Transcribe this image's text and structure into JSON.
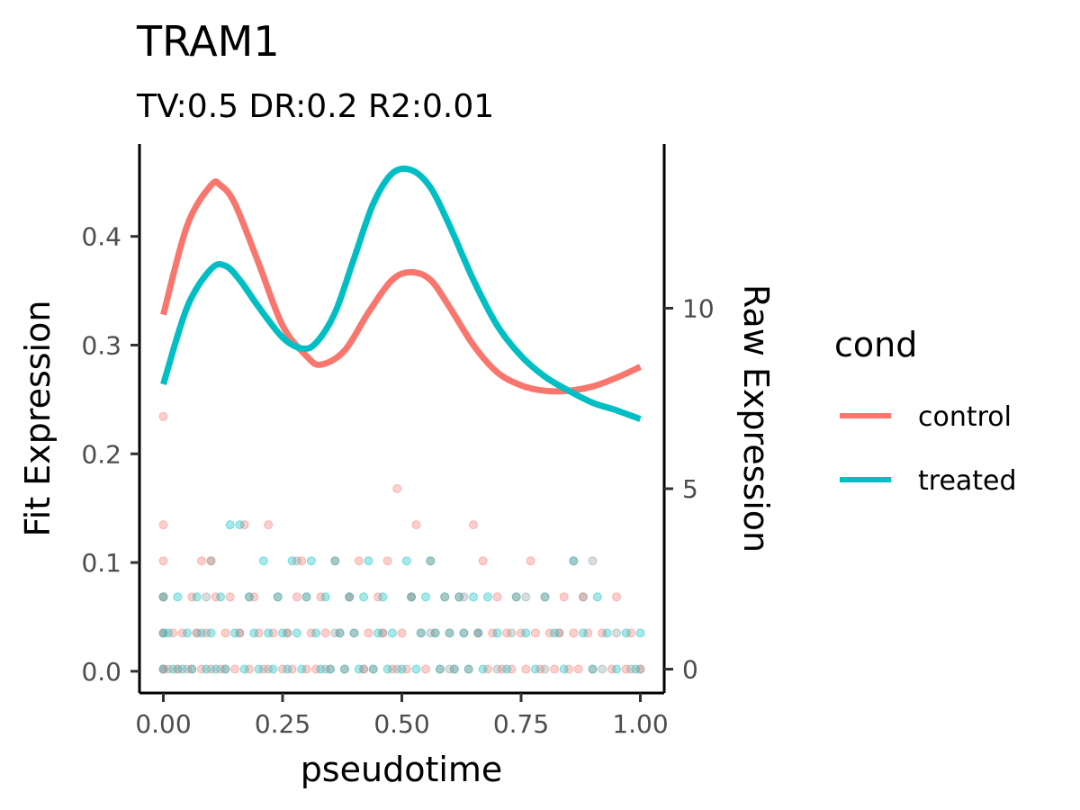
{
  "chart_data": {
    "type": "scatter",
    "title": "TRAM1",
    "subtitle": "TV:0.5 DR:0.2 R2:0.01",
    "xlabel": "pseudotime",
    "ylabel_left": "Fit Expression",
    "ylabel_right": "Raw Expression",
    "xlim": [
      -0.05,
      1.05
    ],
    "ylim_left": [
      -0.02,
      0.485
    ],
    "ylim_right": [
      -0.66,
      14.55
    ],
    "x_ticks": [
      0.0,
      0.25,
      0.5,
      0.75,
      1.0
    ],
    "x_tick_labels": [
      "0.00",
      "0.25",
      "0.50",
      "0.75",
      "1.00"
    ],
    "y_left_ticks": [
      0.0,
      0.1,
      0.2,
      0.3,
      0.4
    ],
    "y_left_tick_labels": [
      "0.0",
      "0.1",
      "0.2",
      "0.3",
      "0.4"
    ],
    "y_right_ticks": [
      0,
      5,
      10
    ],
    "y_right_tick_labels": [
      "0",
      "5",
      "10"
    ],
    "legend": {
      "title": "cond",
      "position": "right"
    },
    "grid": false,
    "series": [
      {
        "name": "control",
        "color": "#F8766D",
        "fit_x": [
          0,
          0.05,
          0.1,
          0.12,
          0.15,
          0.2,
          0.25,
          0.3,
          0.33,
          0.38,
          0.43,
          0.48,
          0.52,
          0.56,
          0.6,
          0.65,
          0.7,
          0.75,
          0.8,
          0.85,
          0.9,
          0.95,
          1.0
        ],
        "fit_y": [
          0.328,
          0.41,
          0.447,
          0.447,
          0.43,
          0.375,
          0.318,
          0.29,
          0.282,
          0.295,
          0.33,
          0.36,
          0.367,
          0.36,
          0.335,
          0.3,
          0.275,
          0.263,
          0.258,
          0.258,
          0.262,
          0.27,
          0.28
        ],
        "raw_points": [
          [
            0.0,
            0
          ],
          [
            0.0,
            1
          ],
          [
            0.0,
            2
          ],
          [
            0.0,
            3
          ],
          [
            0.0,
            4
          ],
          [
            0.0,
            7
          ],
          [
            0.01,
            0
          ],
          [
            0.02,
            1
          ],
          [
            0.03,
            0
          ],
          [
            0.04,
            1
          ],
          [
            0.05,
            0
          ],
          [
            0.06,
            0
          ],
          [
            0.06,
            2
          ],
          [
            0.07,
            1
          ],
          [
            0.08,
            0
          ],
          [
            0.08,
            3
          ],
          [
            0.09,
            1
          ],
          [
            0.1,
            0
          ],
          [
            0.1,
            3
          ],
          [
            0.11,
            2
          ],
          [
            0.12,
            0
          ],
          [
            0.13,
            1
          ],
          [
            0.14,
            2
          ],
          [
            0.15,
            0
          ],
          [
            0.16,
            1
          ],
          [
            0.17,
            4
          ],
          [
            0.18,
            0
          ],
          [
            0.19,
            2
          ],
          [
            0.2,
            1
          ],
          [
            0.21,
            0
          ],
          [
            0.22,
            4
          ],
          [
            0.23,
            1
          ],
          [
            0.24,
            2
          ],
          [
            0.25,
            0
          ],
          [
            0.26,
            1
          ],
          [
            0.27,
            0
          ],
          [
            0.28,
            2
          ],
          [
            0.29,
            3
          ],
          [
            0.3,
            0
          ],
          [
            0.31,
            1
          ],
          [
            0.32,
            0
          ],
          [
            0.33,
            2
          ],
          [
            0.34,
            1
          ],
          [
            0.35,
            0
          ],
          [
            0.36,
            3
          ],
          [
            0.37,
            1
          ],
          [
            0.38,
            0
          ],
          [
            0.39,
            2
          ],
          [
            0.4,
            1
          ],
          [
            0.41,
            3
          ],
          [
            0.42,
            0
          ],
          [
            0.43,
            1
          ],
          [
            0.44,
            0
          ],
          [
            0.45,
            2
          ],
          [
            0.46,
            1
          ],
          [
            0.47,
            3
          ],
          [
            0.48,
            0
          ],
          [
            0.49,
            5
          ],
          [
            0.5,
            1
          ],
          [
            0.51,
            0
          ],
          [
            0.52,
            2
          ],
          [
            0.53,
            4
          ],
          [
            0.54,
            1
          ],
          [
            0.55,
            0
          ],
          [
            0.56,
            3
          ],
          [
            0.57,
            1
          ],
          [
            0.58,
            0
          ],
          [
            0.59,
            2
          ],
          [
            0.6,
            1
          ],
          [
            0.61,
            0
          ],
          [
            0.62,
            2
          ],
          [
            0.63,
            1
          ],
          [
            0.64,
            0
          ],
          [
            0.65,
            4
          ],
          [
            0.66,
            1
          ],
          [
            0.67,
            3
          ],
          [
            0.68,
            0
          ],
          [
            0.69,
            1
          ],
          [
            0.7,
            2
          ],
          [
            0.71,
            0
          ],
          [
            0.72,
            1
          ],
          [
            0.73,
            0
          ],
          [
            0.74,
            2
          ],
          [
            0.75,
            1
          ],
          [
            0.76,
            0
          ],
          [
            0.77,
            3
          ],
          [
            0.78,
            1
          ],
          [
            0.79,
            0
          ],
          [
            0.8,
            2
          ],
          [
            0.81,
            1
          ],
          [
            0.82,
            0
          ],
          [
            0.83,
            1
          ],
          [
            0.84,
            2
          ],
          [
            0.85,
            0
          ],
          [
            0.86,
            1
          ],
          [
            0.87,
            0
          ],
          [
            0.88,
            2
          ],
          [
            0.89,
            1
          ],
          [
            0.9,
            0
          ],
          [
            0.92,
            1
          ],
          [
            0.94,
            0
          ],
          [
            0.95,
            2
          ],
          [
            0.97,
            0
          ],
          [
            0.98,
            1
          ],
          [
            1.0,
            0
          ]
        ]
      },
      {
        "name": "treated",
        "color": "#00BFC4",
        "fit_x": [
          0,
          0.05,
          0.1,
          0.13,
          0.16,
          0.2,
          0.25,
          0.29,
          0.32,
          0.36,
          0.4,
          0.44,
          0.48,
          0.52,
          0.56,
          0.6,
          0.65,
          0.7,
          0.75,
          0.8,
          0.85,
          0.9,
          0.95,
          1.0
        ],
        "fit_y": [
          0.264,
          0.335,
          0.37,
          0.373,
          0.36,
          0.335,
          0.307,
          0.297,
          0.302,
          0.33,
          0.38,
          0.43,
          0.458,
          0.461,
          0.445,
          0.41,
          0.36,
          0.318,
          0.29,
          0.271,
          0.258,
          0.247,
          0.24,
          0.232
        ],
        "raw_points": [
          [
            0.0,
            0
          ],
          [
            0.0,
            1
          ],
          [
            0.0,
            2
          ],
          [
            0.01,
            1
          ],
          [
            0.02,
            0
          ],
          [
            0.03,
            2
          ],
          [
            0.04,
            0
          ],
          [
            0.05,
            1
          ],
          [
            0.06,
            0
          ],
          [
            0.07,
            2
          ],
          [
            0.08,
            1
          ],
          [
            0.09,
            0
          ],
          [
            0.1,
            1
          ],
          [
            0.11,
            0
          ],
          [
            0.12,
            2
          ],
          [
            0.13,
            0
          ],
          [
            0.14,
            4
          ],
          [
            0.15,
            1
          ],
          [
            0.16,
            4
          ],
          [
            0.17,
            0
          ],
          [
            0.18,
            2
          ],
          [
            0.19,
            1
          ],
          [
            0.2,
            0
          ],
          [
            0.21,
            3
          ],
          [
            0.22,
            1
          ],
          [
            0.23,
            0
          ],
          [
            0.24,
            2
          ],
          [
            0.25,
            1
          ],
          [
            0.26,
            0
          ],
          [
            0.27,
            3
          ],
          [
            0.28,
            1
          ],
          [
            0.29,
            0
          ],
          [
            0.3,
            2
          ],
          [
            0.31,
            3
          ],
          [
            0.32,
            1
          ],
          [
            0.33,
            0
          ],
          [
            0.34,
            2
          ],
          [
            0.35,
            0
          ],
          [
            0.36,
            3
          ],
          [
            0.37,
            1
          ],
          [
            0.38,
            0
          ],
          [
            0.39,
            2
          ],
          [
            0.4,
            1
          ],
          [
            0.41,
            0
          ],
          [
            0.42,
            2
          ],
          [
            0.43,
            3
          ],
          [
            0.44,
            0
          ],
          [
            0.45,
            1
          ],
          [
            0.46,
            2
          ],
          [
            0.47,
            0
          ],
          [
            0.48,
            1
          ],
          [
            0.5,
            0
          ],
          [
            0.51,
            3
          ],
          [
            0.52,
            2
          ],
          [
            0.53,
            0
          ],
          [
            0.54,
            1
          ],
          [
            0.55,
            2
          ],
          [
            0.56,
            3
          ],
          [
            0.57,
            1
          ],
          [
            0.58,
            0
          ],
          [
            0.59,
            2
          ],
          [
            0.6,
            1
          ],
          [
            0.61,
            0
          ],
          [
            0.62,
            2
          ],
          [
            0.63,
            1
          ],
          [
            0.64,
            0
          ],
          [
            0.65,
            2
          ],
          [
            0.66,
            1
          ],
          [
            0.67,
            0
          ],
          [
            0.68,
            2
          ],
          [
            0.7,
            1
          ],
          [
            0.72,
            0
          ],
          [
            0.74,
            2
          ],
          [
            0.76,
            1
          ],
          [
            0.78,
            0
          ],
          [
            0.8,
            2
          ],
          [
            0.82,
            1
          ],
          [
            0.84,
            0
          ],
          [
            0.86,
            3
          ],
          [
            0.88,
            1
          ],
          [
            0.9,
            0
          ],
          [
            0.91,
            2
          ],
          [
            0.93,
            1
          ],
          [
            0.95,
            0
          ],
          [
            0.97,
            1
          ],
          [
            0.99,
            0
          ],
          [
            1.0,
            1
          ]
        ]
      },
      {
        "name": "",
        "color": "#8c9b9c",
        "raw_points": [
          [
            0.0,
            0
          ],
          [
            0.0,
            1
          ],
          [
            0.0,
            2
          ],
          [
            0.03,
            0
          ],
          [
            0.07,
            1
          ],
          [
            0.09,
            2
          ],
          [
            0.1,
            3
          ],
          [
            0.13,
            0
          ],
          [
            0.16,
            1
          ],
          [
            0.18,
            2
          ],
          [
            0.22,
            0
          ],
          [
            0.26,
            1
          ],
          [
            0.28,
            3
          ],
          [
            0.3,
            2
          ],
          [
            0.34,
            0
          ],
          [
            0.36,
            1
          ],
          [
            0.39,
            2
          ],
          [
            0.42,
            0
          ],
          [
            0.46,
            1
          ],
          [
            0.49,
            0
          ],
          [
            0.52,
            2
          ],
          [
            0.56,
            1
          ],
          [
            0.6,
            0
          ],
          [
            0.63,
            2
          ],
          [
            0.66,
            1
          ],
          [
            0.7,
            0
          ],
          [
            0.73,
            1
          ],
          [
            0.76,
            2
          ],
          [
            0.8,
            0
          ],
          [
            0.83,
            1
          ],
          [
            0.86,
            3
          ],
          [
            0.88,
            2
          ],
          [
            0.9,
            3
          ],
          [
            0.92,
            0
          ],
          [
            0.95,
            1
          ],
          [
            0.98,
            0
          ],
          [
            1.0,
            0
          ]
        ]
      }
    ]
  }
}
